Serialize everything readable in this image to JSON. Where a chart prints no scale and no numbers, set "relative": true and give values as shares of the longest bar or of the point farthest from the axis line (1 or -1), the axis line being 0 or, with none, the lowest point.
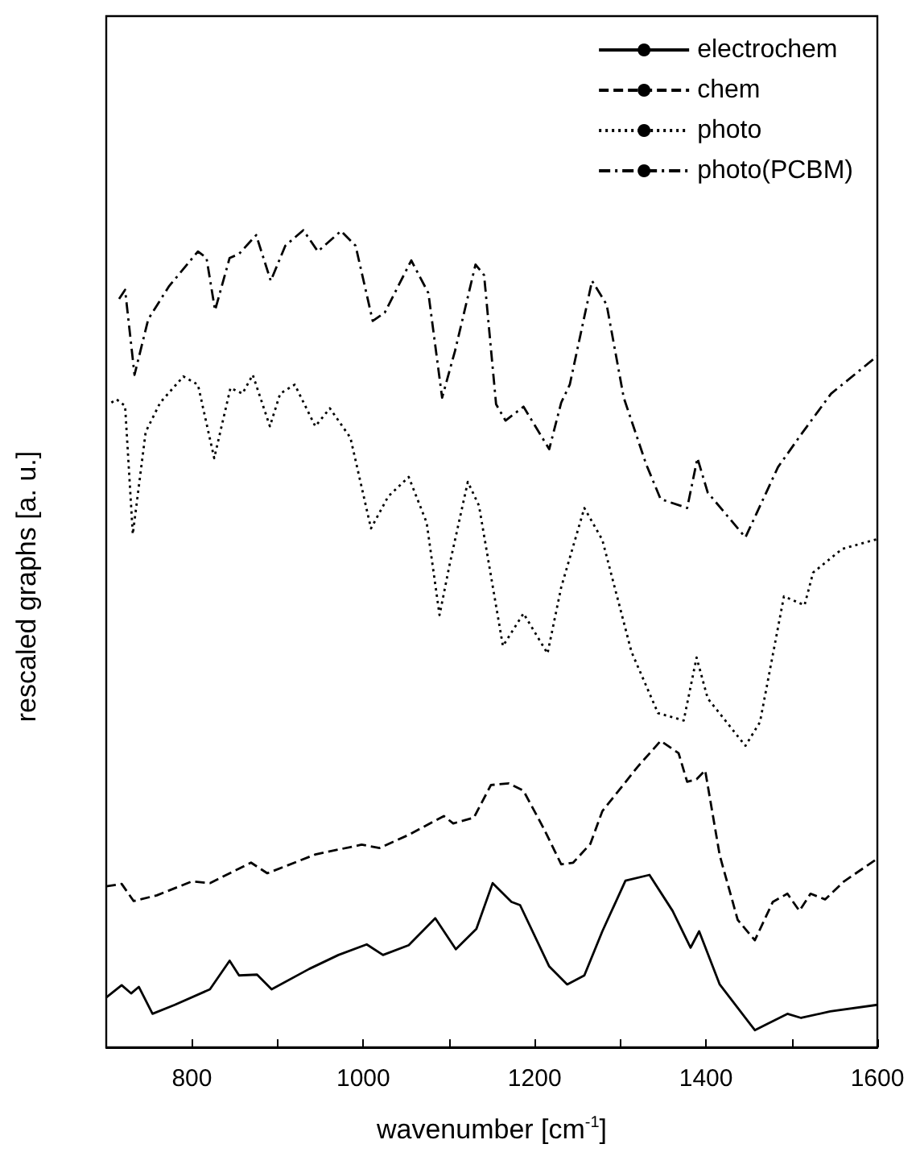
{
  "chart_data": {
    "type": "line",
    "xlabel": "wavenumber [cm$^{-1}$]",
    "ylabel": "rescaled graphs [a. u.]",
    "relative": true,
    "xlim": [
      700,
      1600
    ],
    "xticks": [
      800,
      {
        "value": 900,
        "label": null
      },
      1000,
      {
        "value": 1100,
        "label": null
      },
      1200,
      {
        "value": 1300,
        "label": null
      },
      1400,
      {
        "value": 1500,
        "label": null
      },
      1600
    ],
    "legend": "top right",
    "grid": false,
    "series": [
      {
        "name": "electrochem",
        "color": "#000000",
        "line_style": "solid",
        "x": [
          700,
          718,
          729,
          738,
          754,
          780,
          821,
          844,
          855,
          876,
          893,
          937,
          971,
          1004,
          1023,
          1053,
          1084,
          1108,
          1132,
          1151,
          1173,
          1183,
          1217,
          1238,
          1258,
          1279,
          1306,
          1334,
          1361,
          1382,
          1392,
          1416,
          1457,
          1495,
          1511,
          1545,
          1600
        ],
        "values": [
          0.061,
          0.076,
          0.066,
          0.074,
          0.041,
          0.052,
          0.071,
          0.106,
          0.088,
          0.089,
          0.071,
          0.096,
          0.113,
          0.126,
          0.113,
          0.125,
          0.158,
          0.12,
          0.145,
          0.201,
          0.178,
          0.174,
          0.099,
          0.077,
          0.088,
          0.142,
          0.204,
          0.211,
          0.167,
          0.122,
          0.142,
          0.077,
          0.021,
          0.041,
          0.036,
          0.044,
          0.052
        ]
      },
      {
        "name": "chem",
        "color": "#000000",
        "line_style": "dashed",
        "x": [
          700,
          718,
          732,
          759,
          800,
          821,
          869,
          888,
          944,
          998,
          1019,
          1053,
          1094,
          1105,
          1129,
          1149,
          1170,
          1187,
          1211,
          1231,
          1245,
          1265,
          1279,
          1320,
          1347,
          1368,
          1378,
          1389,
          1399,
          1416,
          1437,
          1457,
          1478,
          1495,
          1509,
          1522,
          1539,
          1561,
          1600
        ],
        "values": [
          0.197,
          0.2,
          0.179,
          0.186,
          0.203,
          0.201,
          0.226,
          0.213,
          0.236,
          0.248,
          0.244,
          0.26,
          0.283,
          0.274,
          0.281,
          0.321,
          0.323,
          0.314,
          0.267,
          0.224,
          0.226,
          0.249,
          0.289,
          0.343,
          0.375,
          0.36,
          0.325,
          0.328,
          0.339,
          0.235,
          0.156,
          0.131,
          0.178,
          0.188,
          0.167,
          0.188,
          0.181,
          0.203,
          0.231
        ]
      },
      {
        "name": "photo",
        "color": "#000000",
        "line_style": "dotted",
        "x": [
          706,
          712,
          722,
          731,
          746,
          763,
          790,
          807,
          826,
          845,
          859,
          871,
          891,
          903,
          920,
          944,
          961,
          985,
          1009,
          1029,
          1053,
          1074,
          1089,
          1101,
          1122,
          1135,
          1163,
          1187,
          1215,
          1231,
          1258,
          1279,
          1313,
          1344,
          1374,
          1389,
          1402,
          1446,
          1463,
          1491,
          1515,
          1525,
          1559,
          1600
        ],
        "values": [
          0.789,
          0.793,
          0.785,
          0.628,
          0.753,
          0.789,
          0.821,
          0.811,
          0.721,
          0.807,
          0.8,
          0.823,
          0.76,
          0.8,
          0.811,
          0.76,
          0.782,
          0.746,
          0.635,
          0.674,
          0.698,
          0.642,
          0.529,
          0.592,
          0.692,
          0.663,
          0.491,
          0.531,
          0.482,
          0.563,
          0.66,
          0.621,
          0.484,
          0.409,
          0.4,
          0.477,
          0.427,
          0.369,
          0.398,
          0.552,
          0.541,
          0.581,
          0.61,
          0.622
        ]
      },
      {
        "name": "photo(PCBM)",
        "color": "#000000",
        "line_style": "dashdot",
        "x": [
          715,
          722,
          733,
          749,
          773,
          807,
          817,
          827,
          844,
          855,
          875,
          892,
          909,
          930,
          947,
          974,
          991,
          1011,
          1025,
          1056,
          1076,
          1092,
          1107,
          1131,
          1141,
          1155,
          1166,
          1187,
          1217,
          1231,
          1241,
          1267,
          1284,
          1304,
          1330,
          1347,
          1378,
          1390,
          1402,
          1446,
          1484,
          1511,
          1546,
          1600
        ],
        "values": [
          0.916,
          0.927,
          0.823,
          0.891,
          0.931,
          0.974,
          0.966,
          0.902,
          0.966,
          0.971,
          0.994,
          0.938,
          0.981,
          1,
          0.974,
          0.999,
          0.981,
          0.889,
          0.899,
          0.963,
          0.923,
          0.795,
          0.852,
          0.958,
          0.945,
          0.787,
          0.767,
          0.784,
          0.732,
          0.789,
          0.811,
          0.938,
          0.909,
          0.795,
          0.714,
          0.671,
          0.66,
          0.721,
          0.679,
          0.624,
          0.71,
          0.75,
          0.8,
          0.846
        ]
      }
    ]
  }
}
